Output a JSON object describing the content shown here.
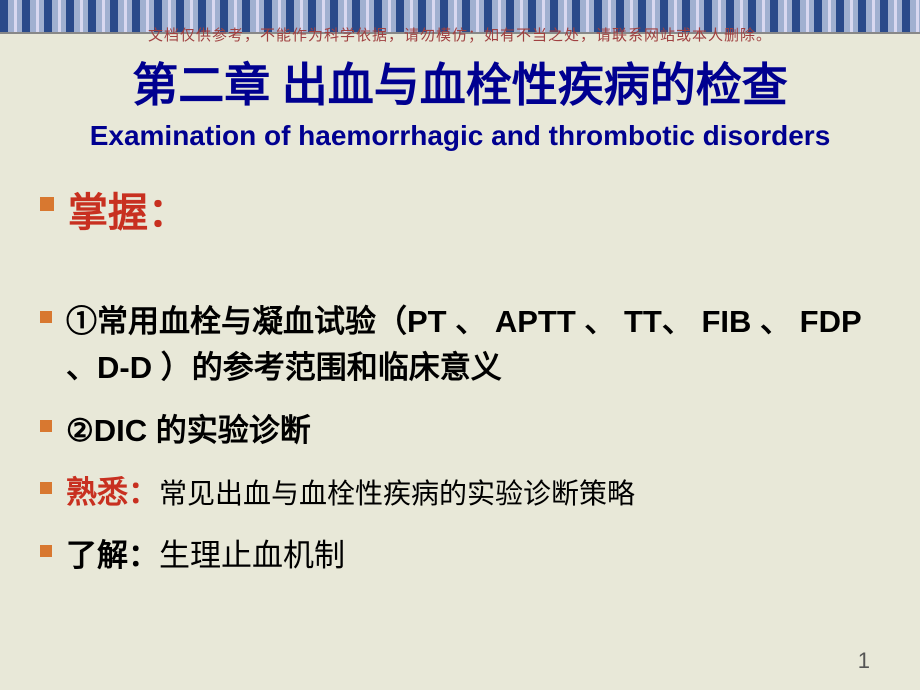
{
  "disclaimer": "文档仅供参考，不能作为科学依据，请勿模仿；如有不当之处，请联系网站或本人删除。",
  "title": {
    "cn": "第二章 出血与血栓性疾病的检查",
    "en": "Examination of haemorrhagic and thrombotic disorders"
  },
  "master_label": "掌握：",
  "points": {
    "p1_prefix": "①常用血栓与凝血试验（",
    "p1_tests": "PT 、 APTT 、 TT、 FIB 、 FDP 、D-D ",
    "p1_suffix": "）的参考范围和临床意义",
    "p2_prefix": "②",
    "p2_latin": "DIC ",
    "p2_suffix": "的实验诊断",
    "familiar_label": "熟悉：",
    "familiar_text": "常见出血与血栓性疾病的实验诊断策略",
    "understand_label": "了解：",
    "understand_text": "生理止血机制"
  },
  "page_number": "1",
  "colors": {
    "title_color": "#000090",
    "accent_red": "#c83020",
    "bullet_color": "#d87830",
    "background": "#e8e8d8"
  }
}
